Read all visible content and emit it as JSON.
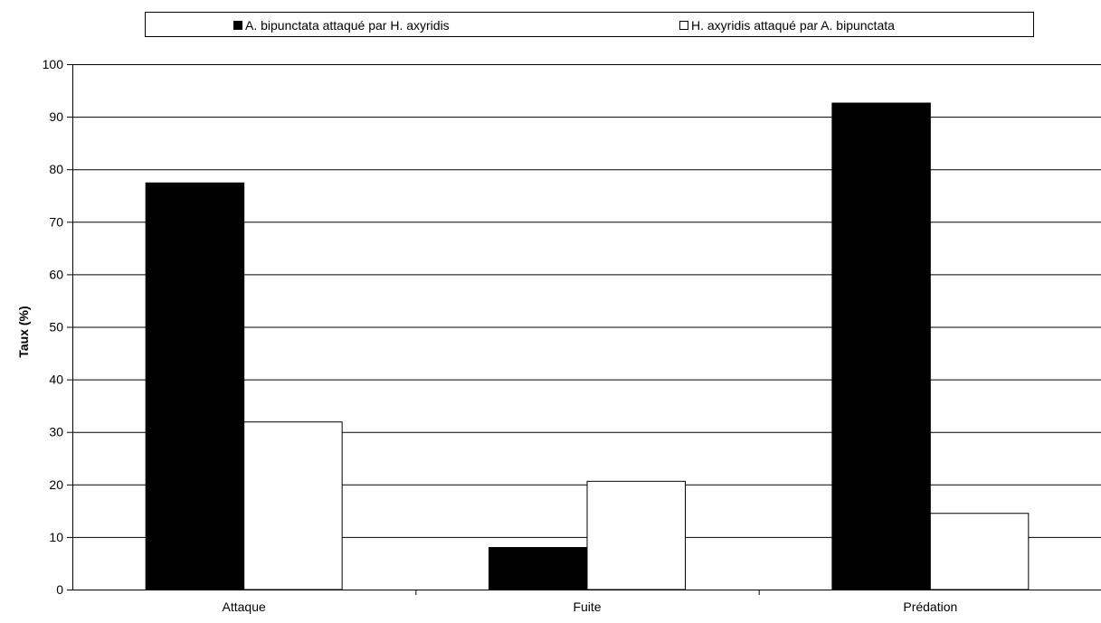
{
  "chart_data": {
    "type": "bar",
    "title": "",
    "xlabel": "",
    "ylabel": "Taux (%)",
    "ylim": [
      0,
      100
    ],
    "yticks": [
      0,
      10,
      20,
      30,
      40,
      50,
      60,
      70,
      80,
      90,
      100
    ],
    "grid": true,
    "legend_position": "top",
    "categories": [
      "Attaque",
      "Fuite",
      "Prédation"
    ],
    "series": [
      {
        "name": "A. bipunctata attaqué par H. axyridis",
        "values": [
          77.4,
          8.0,
          92.6
        ],
        "color": "#000000"
      },
      {
        "name": "H. axyridis attaqué par A. bipunctata",
        "values": [
          31.9,
          20.6,
          14.5
        ],
        "color": "#ffffff"
      }
    ]
  }
}
